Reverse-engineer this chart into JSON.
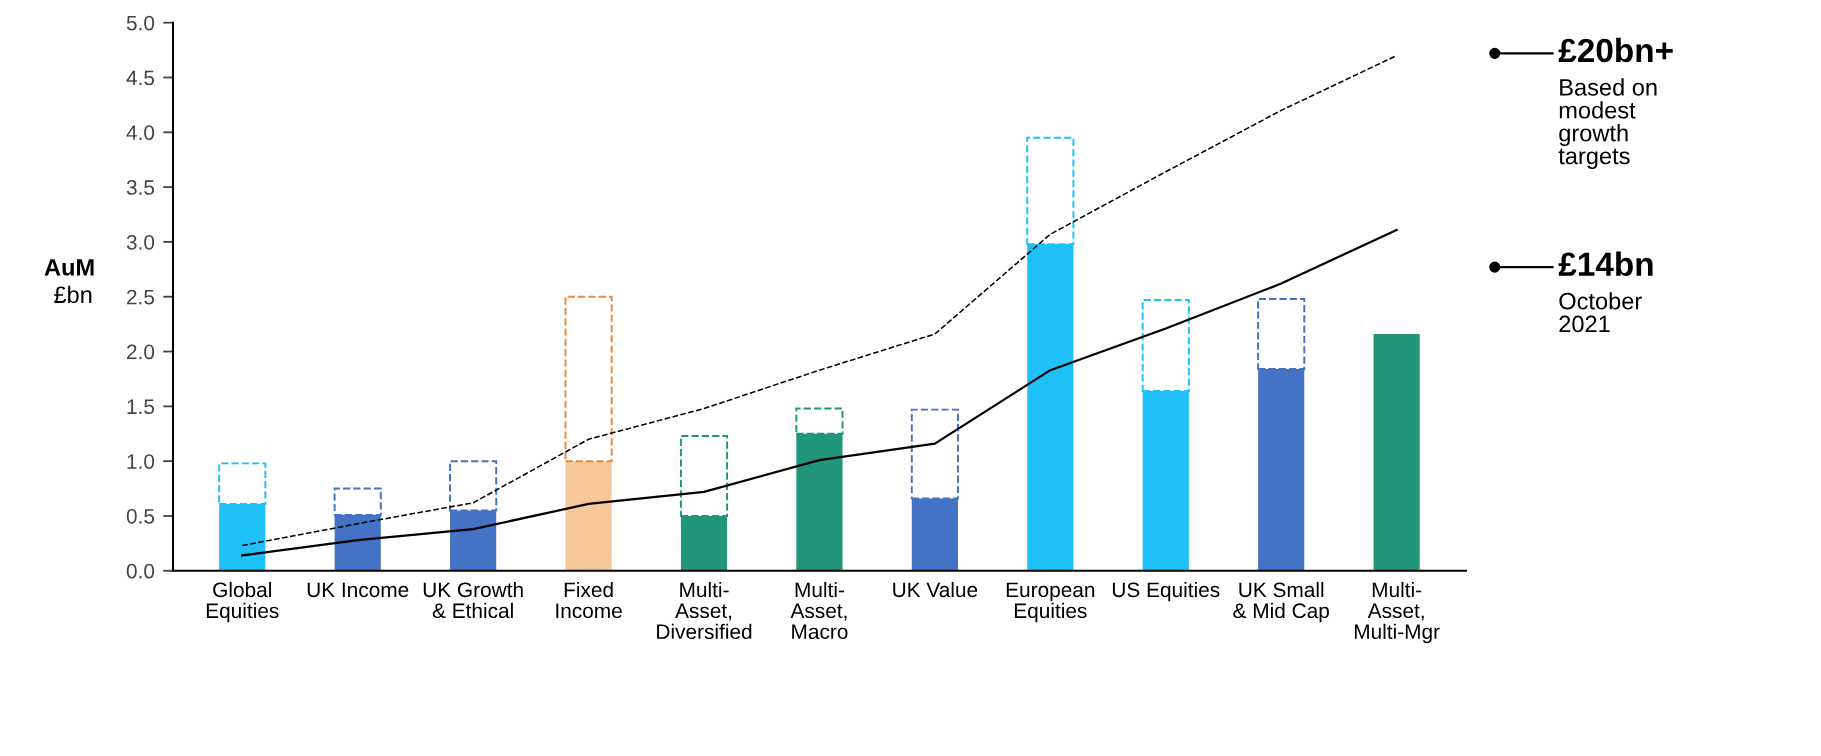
{
  "chart_data": {
    "type": "bar",
    "stacked": true,
    "ylabel": "AuM\n£bn",
    "categories": [
      "Global\nEquities",
      "UK Income",
      "UK Growth\n& Ethical",
      "Fixed\nIncome",
      "Multi-\nAsset,\nDiversified",
      "Multi-\nAsset,\nMacro",
      "UK Value",
      "European\nEquities",
      "US Equities",
      "UK Small\n& Mid Cap",
      "Multi-\nAsset,\nMulti-Mgr"
    ],
    "series": [
      {
        "colors": [
          "#1fc0f8",
          "#4472c4",
          "#4472c4",
          "#f6c899",
          "#219579",
          "#219579",
          "#4472c4",
          "#1fc0f8",
          "#1fc0f8",
          "#4472c4",
          "#219579"
        ],
        "values": [
          0.61,
          0.51,
          0.55,
          1.0,
          0.5,
          1.25,
          0.66,
          2.98,
          1.64,
          1.84,
          2.16
        ]
      },
      {
        "type": "bar",
        "line_style": "dashed",
        "colors": [
          "#1fc0f8",
          "#4472c4",
          "#4472c4",
          "#e88a3a",
          "#219579",
          "#219579",
          "#4472c4",
          "#1fc0f8",
          "#1fc0f8",
          "#4472c4",
          "#219579"
        ],
        "values": [
          0.37,
          0.24,
          0.45,
          1.5,
          0.73,
          0.23,
          0.81,
          0.97,
          0.83,
          0.64,
          null
        ]
      },
      {
        "type": "line",
        "color": "#000000",
        "line_style": "solid",
        "values": [
          0.14,
          0.28,
          0.38,
          0.61,
          0.72,
          1.01,
          1.16,
          1.83,
          2.21,
          2.62,
          3.11
        ]
      },
      {
        "type": "line",
        "color": "#000000",
        "line_style": "dashed",
        "values": [
          0.23,
          0.43,
          0.62,
          1.2,
          1.48,
          1.83,
          2.16,
          3.07,
          3.64,
          4.2,
          4.7
        ]
      }
    ],
    "ylim": [
      0,
      5
    ],
    "yticks": [
      {
        "value": 0,
        "label": "0.0"
      },
      {
        "value": 0.5,
        "label": "0.5"
      },
      {
        "value": 1,
        "label": "1.0"
      },
      {
        "value": 1.5,
        "label": "1.5"
      },
      {
        "value": 2,
        "label": "2.0"
      },
      {
        "value": 2.5,
        "label": "2.5"
      },
      {
        "value": 3,
        "label": "3.0"
      },
      {
        "value": 3.5,
        "label": "3.5"
      },
      {
        "value": 4,
        "label": "4.0"
      },
      {
        "value": 4.5,
        "label": "4.5"
      },
      {
        "value": 5,
        "label": "5.0"
      }
    ],
    "grid": false,
    "legend": false,
    "annotations": [
      "£20bn+\nBased on\nmodest\ngrowth\ntargets",
      "£14bn\nOctober\n2021"
    ]
  }
}
